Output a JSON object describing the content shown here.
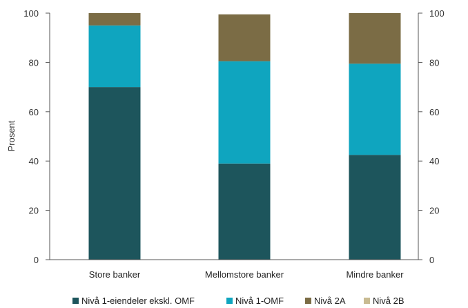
{
  "chart_data": {
    "type": "bar",
    "stacked": true,
    "categories": [
      "Store banker",
      "Mellomstore banker",
      "Mindre banker"
    ],
    "series": [
      {
        "name": "Nivå 1-eiendeler ekskl. OMF",
        "color": "#1d555c",
        "values": [
          70,
          39,
          42.5
        ]
      },
      {
        "name": "Nivå 1-OMF",
        "color": "#0fa5bf",
        "values": [
          25,
          41.5,
          37
        ]
      },
      {
        "name": "Nivå 2A",
        "color": "#7b6c45",
        "values": [
          5,
          19,
          20.5
        ]
      },
      {
        "name": "Nivå 2B",
        "color": "#c8bb92",
        "values": [
          0,
          0,
          0
        ]
      }
    ],
    "ylabel": "Prosent",
    "ylim": [
      0,
      100
    ],
    "yticks": [
      0,
      20,
      40,
      60,
      80,
      100
    ],
    "secondary_y_axis": true,
    "legend_position": "bottom",
    "grid": false
  }
}
